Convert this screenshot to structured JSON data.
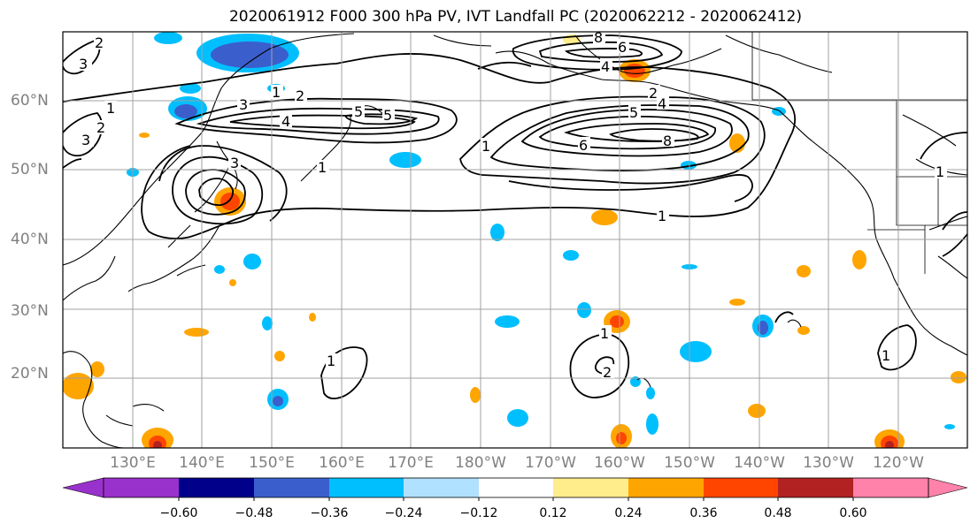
{
  "title": "2020061912 F000 300 hPa PV, IVT Landfall PC (2020062212 - 2020062412)",
  "lat_labels": [
    "20°N",
    "30°N",
    "40°N",
    "50°N",
    "60°N"
  ],
  "lon_labels": [
    "130°E",
    "140°E",
    "150°E",
    "160°E",
    "170°E",
    "180°W",
    "170°W",
    "160°W",
    "150°W",
    "140°W",
    "130°W",
    "120°W"
  ],
  "contour_labels": [
    "1",
    "2",
    "3",
    "4",
    "5",
    "6",
    "8"
  ],
  "colorbar": {
    "ticks": [
      "−0.60",
      "−0.48",
      "−0.36",
      "−0.24",
      "−0.12",
      "0.12",
      "0.24",
      "0.36",
      "0.48",
      "0.60"
    ],
    "colors": [
      "#9932cc",
      "#00008b",
      "#3a5fcd",
      "#00bfff",
      "#b0e2ff",
      "#ffffff",
      "#ffec8b",
      "#ffa500",
      "#ff4500",
      "#b22222",
      "#ff82ab"
    ]
  },
  "colors": {
    "land_outline": "#000000",
    "grid": "#a0a0a0",
    "axis_text": "#808080"
  }
}
